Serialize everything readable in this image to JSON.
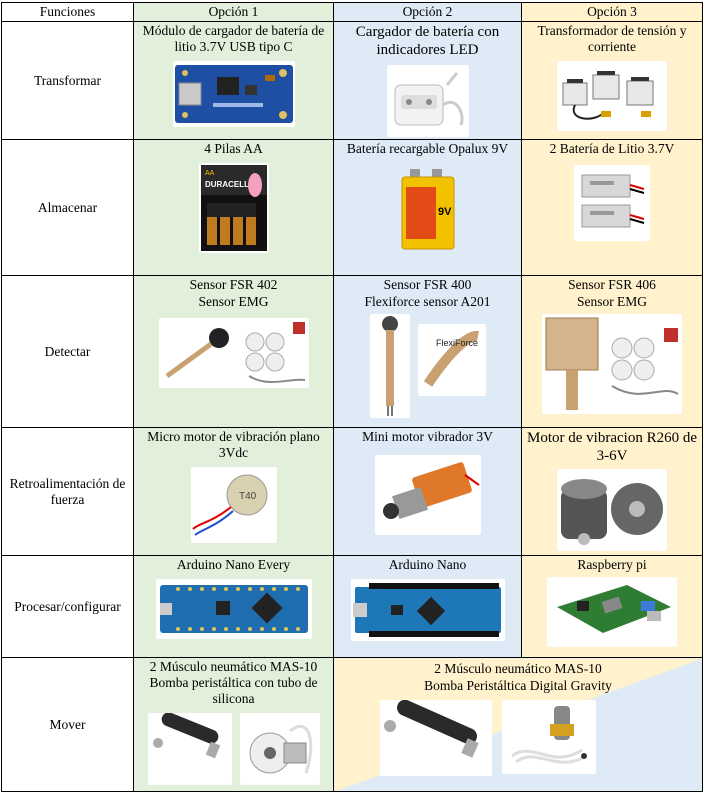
{
  "header": {
    "functions": "Funciones",
    "option1": "Opción 1",
    "option2": "Opción 2",
    "option3": "Opción 3"
  },
  "rows": [
    {
      "function": "Transformar",
      "o1": "Módulo de cargador de batería de litio 3.7V USB tipo C",
      "o2": "Cargador de batería con indicadores LED",
      "o3": "Transformador de tensión y corriente"
    },
    {
      "function": "Almacenar",
      "o1": "4 Pilas AA",
      "o2": "Batería recargable Opalux 9V",
      "o3": "2 Batería de Litio 3.7V"
    },
    {
      "function": "Detectar",
      "o1_line1": "Sensor FSR 402",
      "o1_line2": "Sensor EMG",
      "o2_line1": "Sensor FSR 400",
      "o2_line2": "Flexiforce sensor A201",
      "o3_line1": "Sensor FSR 406",
      "o3_line2": "Sensor EMG"
    },
    {
      "function": "Retroalimentación de fuerza",
      "o1": "Micro motor de vibración plano 3Vdc",
      "o2": "Mini motor vibrador 3V",
      "o3": "Motor de vibracion R260 de 3-6V"
    },
    {
      "function": "Procesar/configurar",
      "o1": "Arduino Nano Every",
      "o2": "Arduino Nano",
      "o3": "Raspberry pi"
    },
    {
      "function": "Mover",
      "o1": "2 Músculo neumático MAS-10 Bomba peristáltica con tubo de silicona",
      "o23_line1": "2 Músculo neumático MAS-10",
      "o23_line2": "Bomba Peristáltica Digital Gravity"
    }
  ],
  "image_text": {
    "duracell": "DURACELL",
    "aa": "AA",
    "battery9v": "9V",
    "motor": "T40",
    "flexiforce": "FlexiForce"
  },
  "colors": {
    "option1": "#e2efda",
    "option2": "#deebf7",
    "option3": "#fff2cc",
    "header1": "#e2efda",
    "header2": "#deebf7",
    "header3": "#fff2cc"
  }
}
